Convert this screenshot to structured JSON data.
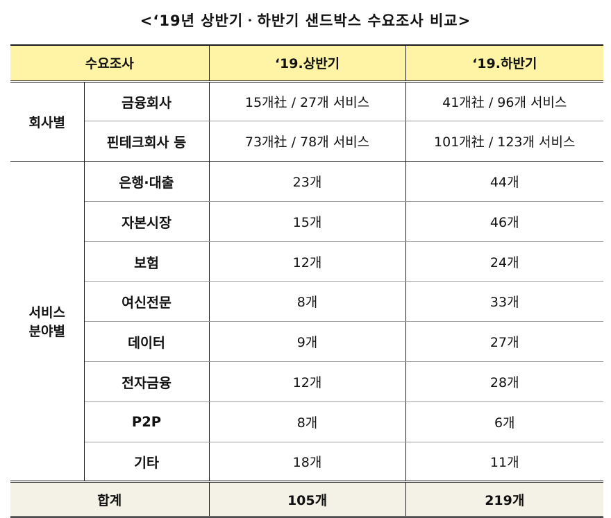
{
  "title": "<‘19년 상반기ㆍ하반기 샌드박스 수요조사 비교>",
  "header": {
    "col1": "수요조사",
    "col2": "‘19.상반기",
    "col3": "‘19.하반기"
  },
  "groups": {
    "company": "회사별",
    "service_line1": "서비스",
    "service_line2": "분야별"
  },
  "company_rows": [
    {
      "label": "금융회사",
      "first_half": "15개社 / 27개 서비스",
      "second_half": "41개社 / 96개 서비스"
    },
    {
      "label": "핀테크회사 등",
      "first_half": "73개社 / 78개 서비스",
      "second_half": "101개社 / 123개 서비스"
    }
  ],
  "service_rows": [
    {
      "label": "은행·대출",
      "first_half": "23개",
      "second_half": "44개"
    },
    {
      "label": "자본시장",
      "first_half": "15개",
      "second_half": "46개"
    },
    {
      "label": "보험",
      "first_half": "12개",
      "second_half": "24개"
    },
    {
      "label": "여신전문",
      "first_half": "8개",
      "second_half": "33개"
    },
    {
      "label": "데이터",
      "first_half": "9개",
      "second_half": "27개"
    },
    {
      "label": "전자금융",
      "first_half": "12개",
      "second_half": "28개"
    },
    {
      "label": "P2P",
      "first_half": "8개",
      "second_half": "6개"
    },
    {
      "label": "기타",
      "first_half": "18개",
      "second_half": "11개"
    }
  ],
  "total": {
    "label": "합계",
    "first_half": "105개",
    "second_half": "219개"
  },
  "colors": {
    "header_bg": "#fff4a6",
    "total_bg": "#f4f1e6"
  }
}
